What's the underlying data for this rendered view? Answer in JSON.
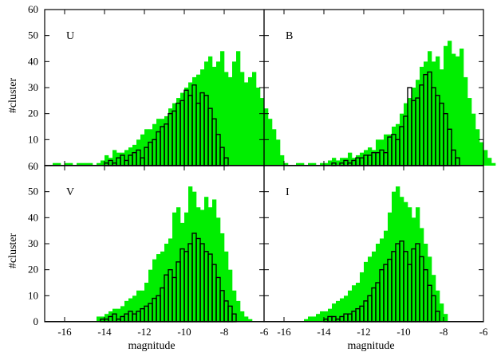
{
  "chart_data": {
    "type": "bar",
    "layout": "2x2 shared axes",
    "x_axis": {
      "label": "magnitude",
      "range": [
        -17,
        -6
      ],
      "ticks": [
        -16,
        -14,
        -12,
        -10,
        -8,
        -6
      ],
      "tick_labels": [
        "-16",
        "-14",
        "-12",
        "-10",
        "-8",
        "-6"
      ]
    },
    "y_axis": {
      "label": "#cluster",
      "range": [
        0,
        60
      ],
      "top_ticks": [
        60,
        50,
        40,
        30,
        20,
        10
      ],
      "top_tick_labels": [
        "60",
        "50",
        "40",
        "30",
        "20",
        "10"
      ],
      "bottom_ticks": [
        0,
        10,
        20,
        30,
        40,
        50
      ],
      "bottom_tick_labels": [
        "0",
        "10",
        "20",
        "30",
        "40",
        "50"
      ],
      "divider_label": "60"
    },
    "bin_width": 0.2,
    "series_colors": {
      "all": "#00ee00",
      "subset": "#000000"
    },
    "panels": [
      {
        "label": "U",
        "green": {
          "x0": -16.6,
          "values": [
            1,
            1,
            0,
            1,
            1,
            0,
            1,
            1,
            1,
            1,
            0,
            1,
            2,
            4,
            3,
            6,
            5,
            5,
            6,
            7,
            8,
            10,
            12,
            14,
            14,
            16,
            18,
            18,
            19,
            22,
            24,
            26,
            28,
            30,
            32,
            34,
            35,
            37,
            40,
            42,
            38,
            40,
            44,
            36,
            34,
            40,
            44,
            36,
            32,
            34,
            36,
            30,
            26,
            22,
            18,
            14,
            10,
            4,
            1,
            0
          ]
        },
        "black": {
          "x0": -14.6,
          "values": [
            0,
            0,
            0,
            1,
            2,
            1,
            3,
            4,
            2,
            4,
            5,
            6,
            3,
            7,
            9,
            10,
            13,
            15,
            16,
            20,
            21,
            24,
            25,
            29,
            27,
            31,
            24,
            28,
            27,
            22,
            18,
            12,
            7,
            3
          ]
        }
      },
      {
        "label": "B",
        "green": {
          "x0": -15.6,
          "values": [
            0,
            1,
            1,
            0,
            1,
            1,
            0,
            1,
            1,
            2,
            3,
            2,
            3,
            3,
            5,
            3,
            4,
            5,
            6,
            7,
            6,
            10,
            10,
            12,
            12,
            15,
            16,
            20,
            24,
            26,
            30,
            33,
            38,
            40,
            44,
            40,
            42,
            37,
            46,
            48,
            43,
            42,
            45,
            34,
            26,
            20,
            14,
            9,
            6,
            3,
            1
          ]
        },
        "black": {
          "x0": -13.6,
          "values": [
            1,
            0,
            1,
            2,
            1,
            2,
            3,
            3,
            4,
            4,
            5,
            5,
            6,
            5,
            11,
            12,
            10,
            15,
            19,
            30,
            25,
            26,
            31,
            35,
            36,
            30,
            27,
            24,
            20,
            14,
            6,
            3
          ]
        }
      },
      {
        "label": "V",
        "green": {
          "x0": -14.4,
          "values": [
            2,
            2,
            3,
            4,
            5,
            5,
            6,
            8,
            9,
            10,
            12,
            12,
            15,
            20,
            24,
            26,
            27,
            30,
            32,
            42,
            44,
            38,
            42,
            52,
            50,
            44,
            43,
            48,
            44,
            47,
            40,
            34,
            27,
            20,
            12,
            8,
            4,
            2,
            1
          ]
        },
        "black": {
          "x0": -14.2,
          "values": [
            1,
            1,
            2,
            3,
            1,
            2,
            3,
            4,
            3,
            4,
            5,
            6,
            7,
            9,
            10,
            13,
            18,
            20,
            17,
            23,
            28,
            27,
            30,
            34,
            32,
            30,
            27,
            26,
            22,
            17,
            12,
            8,
            6,
            3
          ]
        }
      },
      {
        "label": "I",
        "green": {
          "x0": -15.0,
          "values": [
            1,
            2,
            2,
            3,
            4,
            4,
            5,
            7,
            8,
            9,
            10,
            12,
            14,
            15,
            19,
            23,
            25,
            27,
            30,
            32,
            35,
            42,
            50,
            52,
            48,
            46,
            44,
            40,
            44,
            36,
            30,
            25,
            18,
            12,
            7,
            3
          ]
        },
        "black": {
          "x0": -14.0,
          "values": [
            1,
            2,
            2,
            1,
            2,
            3,
            3,
            4,
            5,
            6,
            8,
            10,
            13,
            15,
            20,
            22,
            24,
            27,
            30,
            31,
            27,
            22,
            28,
            30,
            25,
            20,
            14,
            10,
            4
          ]
        }
      }
    ]
  }
}
